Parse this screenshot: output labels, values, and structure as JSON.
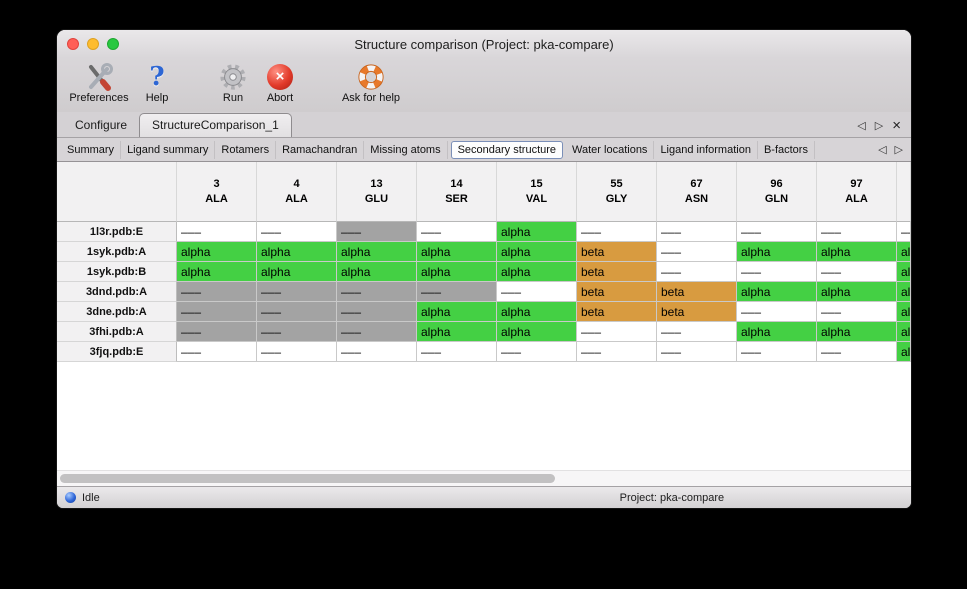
{
  "window": {
    "title": "Structure comparison (Project: pka-compare)"
  },
  "toolbar": {
    "buttons": [
      {
        "label": "Preferences"
      },
      {
        "label": "Help"
      },
      {
        "label": "Run"
      },
      {
        "label": "Abort"
      },
      {
        "label": "Ask for help"
      }
    ]
  },
  "icons": {
    "help_glyph": "?",
    "abort_glyph": "×"
  },
  "nav": {
    "prev": "◁",
    "next": "▷",
    "close": "×"
  },
  "tabbar": {
    "active": "StructureComparison_1",
    "tabs": [
      {
        "label": "Configure"
      },
      {
        "label": "StructureComparison_1"
      }
    ]
  },
  "subtabbar": {
    "active": "Secondary structure",
    "tabs": [
      {
        "label": "Summary"
      },
      {
        "label": "Ligand summary"
      },
      {
        "label": "Rotamers"
      },
      {
        "label": "Ramachandran"
      },
      {
        "label": "Missing atoms"
      },
      {
        "label": "Secondary structure"
      },
      {
        "label": "Water locations"
      },
      {
        "label": "Ligand information"
      },
      {
        "label": "B-factors"
      }
    ]
  },
  "colors": {
    "alpha": "#44d044",
    "beta": "#d89b40",
    "missing": "#a3a3a3",
    "blank": "#ffffff"
  },
  "table": {
    "columns": [
      {
        "num": "3",
        "res": "ALA"
      },
      {
        "num": "4",
        "res": "ALA"
      },
      {
        "num": "13",
        "res": "GLU"
      },
      {
        "num": "14",
        "res": "SER"
      },
      {
        "num": "15",
        "res": "VAL"
      },
      {
        "num": "55",
        "res": "GLY"
      },
      {
        "num": "67",
        "res": "ASN"
      },
      {
        "num": "96",
        "res": "GLN"
      },
      {
        "num": "97",
        "res": "ALA"
      }
    ],
    "rows": [
      {
        "label": "1l3r.pdb:E",
        "cells": [
          {
            "text": "–––",
            "state": "blank"
          },
          {
            "text": "–––",
            "state": "blank"
          },
          {
            "text": "–––",
            "state": "missing"
          },
          {
            "text": "–––",
            "state": "blank"
          },
          {
            "text": "alpha",
            "state": "alpha"
          },
          {
            "text": "–––",
            "state": "blank"
          },
          {
            "text": "–––",
            "state": "blank"
          },
          {
            "text": "–––",
            "state": "blank"
          },
          {
            "text": "–––",
            "state": "blank"
          }
        ],
        "edge": {
          "text": "–––",
          "state": "blank"
        }
      },
      {
        "label": "1syk.pdb:A",
        "cells": [
          {
            "text": "alpha",
            "state": "alpha"
          },
          {
            "text": "alpha",
            "state": "alpha"
          },
          {
            "text": "alpha",
            "state": "alpha"
          },
          {
            "text": "alpha",
            "state": "alpha"
          },
          {
            "text": "alpha",
            "state": "alpha"
          },
          {
            "text": "beta",
            "state": "beta"
          },
          {
            "text": "–––",
            "state": "blank"
          },
          {
            "text": "alpha",
            "state": "alpha"
          },
          {
            "text": "alpha",
            "state": "alpha"
          }
        ],
        "edge": {
          "text": "alpha",
          "state": "alpha"
        }
      },
      {
        "label": "1syk.pdb:B",
        "cells": [
          {
            "text": "alpha",
            "state": "alpha"
          },
          {
            "text": "alpha",
            "state": "alpha"
          },
          {
            "text": "alpha",
            "state": "alpha"
          },
          {
            "text": "alpha",
            "state": "alpha"
          },
          {
            "text": "alpha",
            "state": "alpha"
          },
          {
            "text": "beta",
            "state": "beta"
          },
          {
            "text": "–––",
            "state": "blank"
          },
          {
            "text": "–––",
            "state": "blank"
          },
          {
            "text": "–––",
            "state": "blank"
          }
        ],
        "edge": {
          "text": "alpha",
          "state": "alpha"
        }
      },
      {
        "label": "3dnd.pdb:A",
        "cells": [
          {
            "text": "–––",
            "state": "missing"
          },
          {
            "text": "–––",
            "state": "missing"
          },
          {
            "text": "–––",
            "state": "missing"
          },
          {
            "text": "–––",
            "state": "missing"
          },
          {
            "text": "–––",
            "state": "blank"
          },
          {
            "text": "beta",
            "state": "beta"
          },
          {
            "text": "beta",
            "state": "beta"
          },
          {
            "text": "alpha",
            "state": "alpha"
          },
          {
            "text": "alpha",
            "state": "alpha"
          }
        ],
        "edge": {
          "text": "alpha",
          "state": "alpha"
        }
      },
      {
        "label": "3dne.pdb:A",
        "cells": [
          {
            "text": "–––",
            "state": "missing"
          },
          {
            "text": "–––",
            "state": "missing"
          },
          {
            "text": "–––",
            "state": "missing"
          },
          {
            "text": "alpha",
            "state": "alpha"
          },
          {
            "text": "alpha",
            "state": "alpha"
          },
          {
            "text": "beta",
            "state": "beta"
          },
          {
            "text": "beta",
            "state": "beta"
          },
          {
            "text": "–––",
            "state": "blank"
          },
          {
            "text": "–––",
            "state": "blank"
          }
        ],
        "edge": {
          "text": "alpha",
          "state": "alpha"
        }
      },
      {
        "label": "3fhi.pdb:A",
        "cells": [
          {
            "text": "–––",
            "state": "missing"
          },
          {
            "text": "–––",
            "state": "missing"
          },
          {
            "text": "–––",
            "state": "missing"
          },
          {
            "text": "alpha",
            "state": "alpha"
          },
          {
            "text": "alpha",
            "state": "alpha"
          },
          {
            "text": "–––",
            "state": "blank"
          },
          {
            "text": "–––",
            "state": "blank"
          },
          {
            "text": "alpha",
            "state": "alpha"
          },
          {
            "text": "alpha",
            "state": "alpha"
          }
        ],
        "edge": {
          "text": "alpha",
          "state": "alpha"
        }
      },
      {
        "label": "3fjq.pdb:E",
        "cells": [
          {
            "text": "–––",
            "state": "blank"
          },
          {
            "text": "–––",
            "state": "blank"
          },
          {
            "text": "–––",
            "state": "blank"
          },
          {
            "text": "–––",
            "state": "blank"
          },
          {
            "text": "–––",
            "state": "blank"
          },
          {
            "text": "–––",
            "state": "blank"
          },
          {
            "text": "–––",
            "state": "blank"
          },
          {
            "text": "–––",
            "state": "blank"
          },
          {
            "text": "–––",
            "state": "blank"
          }
        ],
        "edge": {
          "text": "alpha",
          "state": "alpha"
        }
      }
    ]
  },
  "statusbar": {
    "status": "Idle",
    "project": "Project: pka-compare"
  }
}
